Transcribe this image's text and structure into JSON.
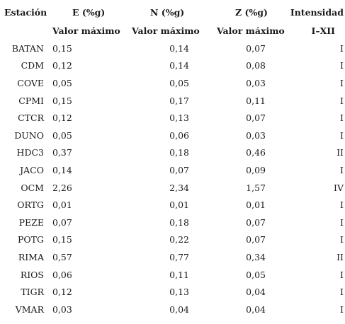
{
  "header": {
    "station": "Estación",
    "e": "E (%g)",
    "n": "N (%g)",
    "z": "Z (%g)",
    "intensity": "Intensidad",
    "e_sub": "Valor máximo",
    "n_sub": "Valor máximo",
    "z_sub": "Valor máximo",
    "intensity_sub": "I–XII"
  },
  "rows": [
    {
      "station": "BATAN",
      "e": "0,15",
      "n": "0,14",
      "z": "0,07",
      "intensity": "I"
    },
    {
      "station": "CDM",
      "e": "0,12",
      "n": "0,14",
      "z": "0,08",
      "intensity": "I"
    },
    {
      "station": "COVE",
      "e": "0,05",
      "n": "0,05",
      "z": "0,03",
      "intensity": "I"
    },
    {
      "station": "CPMI",
      "e": "0,15",
      "n": "0,17",
      "z": "0,11",
      "intensity": "I"
    },
    {
      "station": "CTCR",
      "e": "0,12",
      "n": "0,13",
      "z": "0,07",
      "intensity": "I"
    },
    {
      "station": "DUNO",
      "e": "0,05",
      "n": "0,06",
      "z": "0,03",
      "intensity": "I"
    },
    {
      "station": "HDC3",
      "e": "0,37",
      "n": "0,18",
      "z": "0,46",
      "intensity": "II"
    },
    {
      "station": "JACO",
      "e": "0,14",
      "n": "0,07",
      "z": "0,09",
      "intensity": "I"
    },
    {
      "station": "OCM",
      "e": "2,26",
      "n": "2,34",
      "z": "1,57",
      "intensity": "IV"
    },
    {
      "station": "ORTG",
      "e": "0,01",
      "n": "0,01",
      "z": "0,01",
      "intensity": "I"
    },
    {
      "station": "PEZE",
      "e": "0,07",
      "n": "0,18",
      "z": "0,07",
      "intensity": "I"
    },
    {
      "station": "POTG",
      "e": "0,15",
      "n": "0,22",
      "z": "0,07",
      "intensity": "I"
    },
    {
      "station": "RIMA",
      "e": "0,57",
      "n": "0,77",
      "z": "0,34",
      "intensity": "II"
    },
    {
      "station": "RIOS",
      "e": "0,06",
      "n": "0,11",
      "z": "0,05",
      "intensity": "I"
    },
    {
      "station": "TIGR",
      "e": "0,12",
      "n": "0,13",
      "z": "0,04",
      "intensity": "I"
    },
    {
      "station": "VMAR",
      "e": "0,03",
      "n": "0,04",
      "z": "0,04",
      "intensity": "I"
    }
  ]
}
